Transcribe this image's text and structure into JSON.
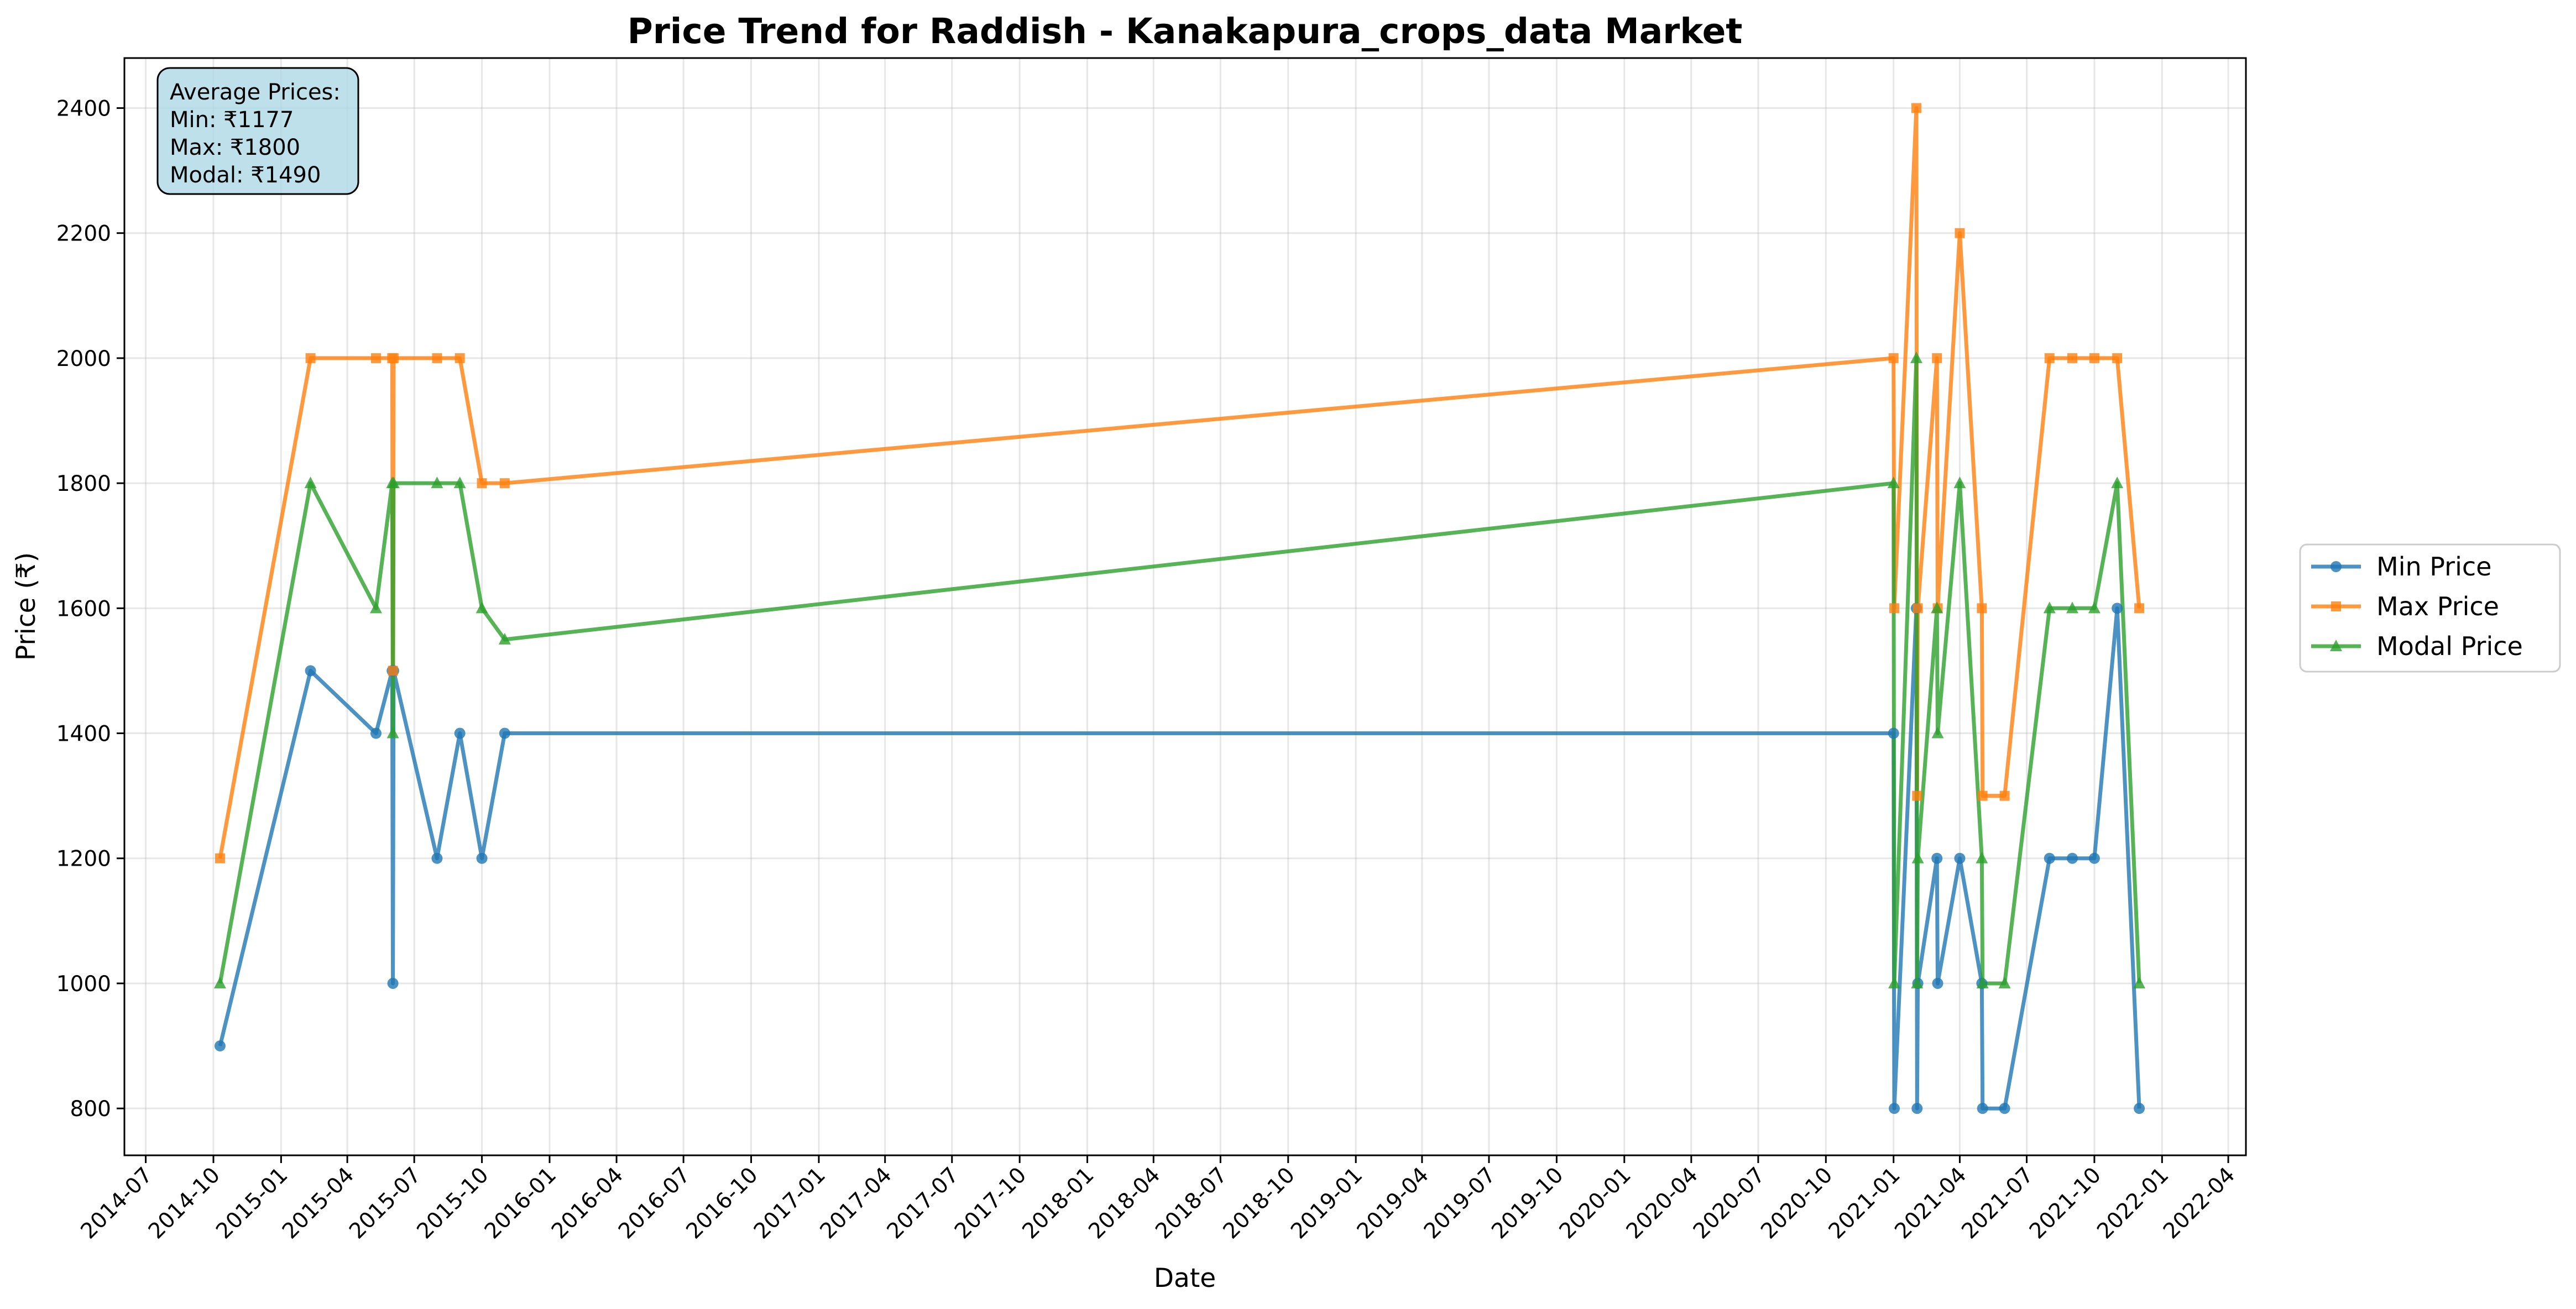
{
  "chart_data": {
    "type": "line",
    "title": "Price Trend for Raddish - Kanakapura_crops_data Market",
    "xlabel": "Date",
    "ylabel": "Price (₹)",
    "xlim": [
      "2014-06-02",
      "2022-04-25"
    ],
    "ylim": [
      725,
      2480
    ],
    "grid": true,
    "legend_position": "right-outside",
    "x_ticks": [
      "2014-07",
      "2014-10",
      "2015-01",
      "2015-04",
      "2015-07",
      "2015-10",
      "2016-01",
      "2016-04",
      "2016-07",
      "2016-10",
      "2017-01",
      "2017-04",
      "2017-07",
      "2017-10",
      "2018-01",
      "2018-04",
      "2018-07",
      "2018-10",
      "2019-01",
      "2019-04",
      "2019-07",
      "2019-10",
      "2020-01",
      "2020-04",
      "2020-07",
      "2020-10",
      "2021-01",
      "2021-04",
      "2021-07",
      "2021-10",
      "2022-01",
      "2022-04"
    ],
    "y_ticks": [
      800,
      1000,
      1200,
      1400,
      1600,
      1800,
      2000,
      2200,
      2400
    ],
    "x": [
      "2014-10-10",
      "2015-02-10",
      "2015-05-10",
      "2015-06-01",
      "2015-06-02",
      "2015-06-03",
      "2015-08-01",
      "2015-09-01",
      "2015-10-01",
      "2015-11-01",
      "2021-01-01",
      "2021-01-02",
      "2021-02-01",
      "2021-02-02",
      "2021-02-03",
      "2021-03-01",
      "2021-03-02",
      "2021-04-01",
      "2021-05-01",
      "2021-05-02",
      "2021-06-01",
      "2021-08-01",
      "2021-09-01",
      "2021-10-01",
      "2021-11-01",
      "2021-12-01"
    ],
    "series": [
      {
        "name": "Min Price",
        "color": "#1f77b4",
        "marker": "circle",
        "values": [
          900,
          1500,
          1400,
          1500,
          1000,
          1500,
          1200,
          1400,
          1200,
          1400,
          1400,
          800,
          1600,
          800,
          1000,
          1200,
          1000,
          1200,
          1000,
          800,
          800,
          1200,
          1200,
          1200,
          1600,
          800
        ]
      },
      {
        "name": "Max Price",
        "color": "#ff7f0e",
        "marker": "square",
        "values": [
          1200,
          2000,
          2000,
          2000,
          1500,
          2000,
          2000,
          2000,
          1800,
          1800,
          2000,
          1600,
          2400,
          1300,
          1600,
          2000,
          1600,
          2200,
          1600,
          1300,
          1300,
          2000,
          2000,
          2000,
          2000,
          1600
        ]
      },
      {
        "name": "Modal Price",
        "color": "#2ca02c",
        "marker": "triangle",
        "values": [
          1000,
          1800,
          1600,
          1800,
          1400,
          1800,
          1800,
          1800,
          1600,
          1550,
          1800,
          1000,
          2000,
          1000,
          1200,
          1600,
          1400,
          1800,
          1200,
          1000,
          1000,
          1600,
          1600,
          1600,
          1800,
          1000
        ]
      }
    ],
    "annotation": {
      "lines": [
        "Average Prices:",
        "Min: ₹1177",
        "Max: ₹1800",
        "Modal: ₹1490"
      ]
    }
  }
}
